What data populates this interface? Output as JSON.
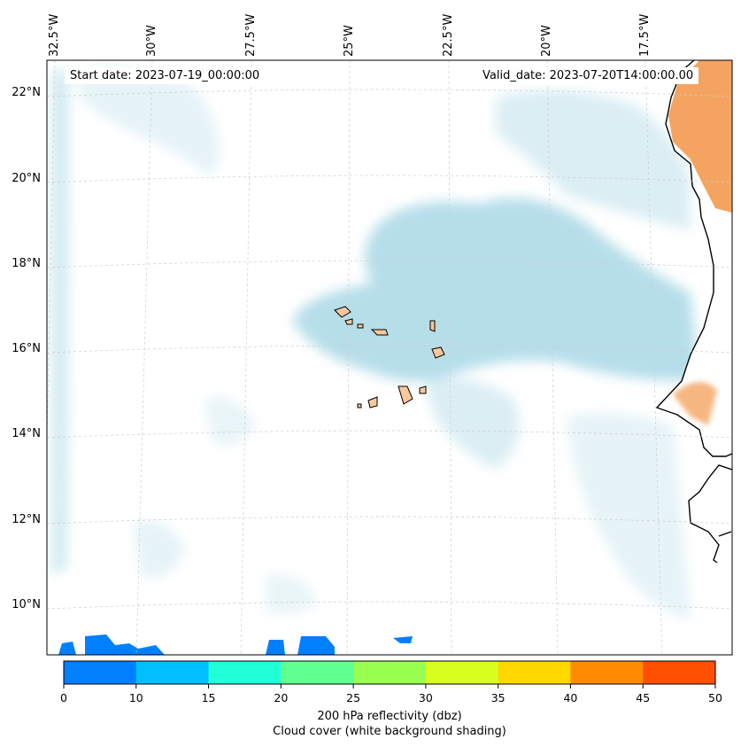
{
  "map": {
    "start_date": "Start date: 2023-07-19_00:00:00",
    "valid_date": "Valid_date: 2023-07-20T14:00:00.00",
    "lat_labels": [
      "22°N",
      "20°N",
      "18°N",
      "16°N",
      "14°N",
      "12°N",
      "10°N"
    ],
    "lon_labels": [
      "32.5°W",
      "30°W",
      "27.5°W",
      "25°W",
      "22.5°W",
      "20°W",
      "17.5°W"
    ],
    "colors": {
      "land_fill": "#f4a460",
      "island_fill": "#f7c89c",
      "cloud": "#a9d8e6",
      "coast": "#000000",
      "grid": "#cccccc"
    }
  },
  "colorbar": {
    "ticks": [
      "0",
      "10",
      "15",
      "20",
      "25",
      "30",
      "35",
      "40",
      "45",
      "50"
    ],
    "colors": [
      "#0080ff",
      "#00c0ff",
      "#20ffd8",
      "#60ff90",
      "#98ff50",
      "#d8ff20",
      "#ffd800",
      "#ff8c00",
      "#ff5000"
    ],
    "label_line1": "200 hPa reflectivity (dbz)",
    "label_line2": "Cloud cover (white background shading)"
  }
}
